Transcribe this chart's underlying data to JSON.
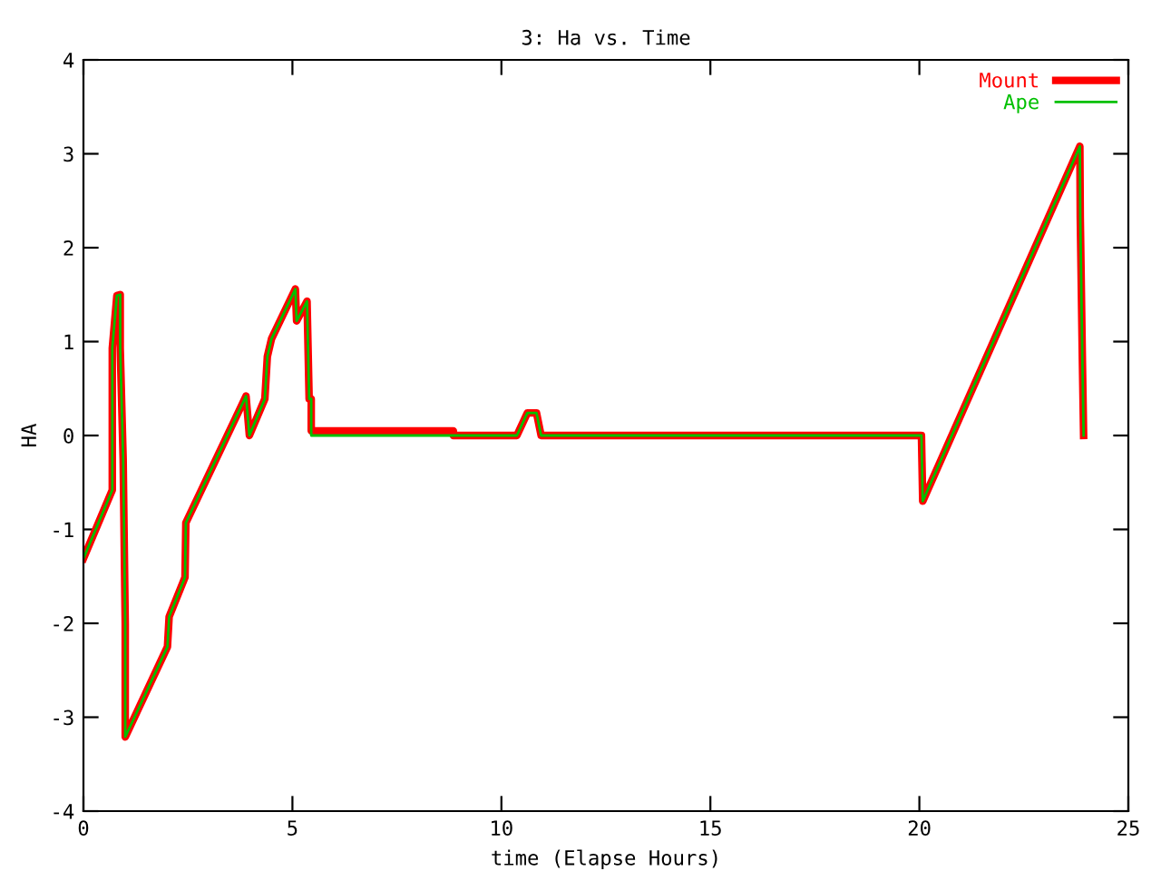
{
  "chart_data": {
    "type": "line",
    "title": "3: Ha vs. Time",
    "xlabel": "time (Elapse Hours)",
    "ylabel": "HA",
    "xlim": [
      0,
      25
    ],
    "xticks": [
      0,
      5,
      10,
      15,
      20,
      25
    ],
    "ylim": [
      -4,
      4
    ],
    "yticks": [
      -4,
      -3,
      -2,
      -1,
      0,
      1,
      2,
      3,
      4
    ],
    "grid": false,
    "legend": "top right",
    "series": [
      {
        "name": "Mount",
        "color": "#ff0000",
        "x": [
          0,
          0.69,
          0.69,
          0.69,
          0.8,
          0.88,
          0.88,
          0.95,
          1.0,
          1.0,
          2.01,
          2.05,
          2.43,
          2.45,
          3.89,
          3.97,
          4.34,
          4.4,
          4.5,
          5.07,
          5.1,
          5.35,
          5.4,
          5.45,
          5.45,
          8.85,
          8.85,
          10.37,
          10.62,
          10.84,
          10.95,
          20.05,
          20.08,
          23.84,
          23.85,
          23.9,
          23.93
        ],
        "values": [
          -1.31,
          -0.58,
          -0.06,
          0.93,
          1.49,
          1.5,
          0.93,
          -0.25,
          -2.0,
          -3.21,
          -2.25,
          -1.93,
          -1.51,
          -0.93,
          0.42,
          0.0,
          0.39,
          0.84,
          1.03,
          1.56,
          1.22,
          1.43,
          0.39,
          0.39,
          0.05,
          0.05,
          0.0,
          0.0,
          0.24,
          0.24,
          0.0,
          0.0,
          -0.7,
          3.08,
          2.32,
          0.81,
          0.0
        ]
      },
      {
        "name": "Ape",
        "color": "#00c000",
        "x": [
          0,
          0.69,
          0.69,
          0.69,
          0.8,
          0.88,
          0.88,
          0.95,
          1.0,
          1.0,
          2.01,
          2.05,
          2.43,
          2.45,
          3.89,
          3.97,
          4.34,
          4.4,
          4.5,
          5.07,
          5.1,
          5.35,
          5.4,
          5.45,
          5.45,
          10.37,
          10.62,
          10.84,
          10.95,
          20.05,
          20.08,
          23.84,
          23.85,
          23.9,
          23.93
        ],
        "values": [
          -1.31,
          -0.58,
          -0.06,
          0.93,
          1.49,
          1.5,
          0.93,
          -0.25,
          -2.0,
          -3.21,
          -2.25,
          -1.93,
          -1.51,
          -0.93,
          0.42,
          0.0,
          0.39,
          0.84,
          1.03,
          1.56,
          1.22,
          1.43,
          0.39,
          0.39,
          0.0,
          0.0,
          0.24,
          0.24,
          0.0,
          0.0,
          -0.7,
          3.08,
          2.32,
          0.81,
          0.0
        ]
      }
    ]
  }
}
